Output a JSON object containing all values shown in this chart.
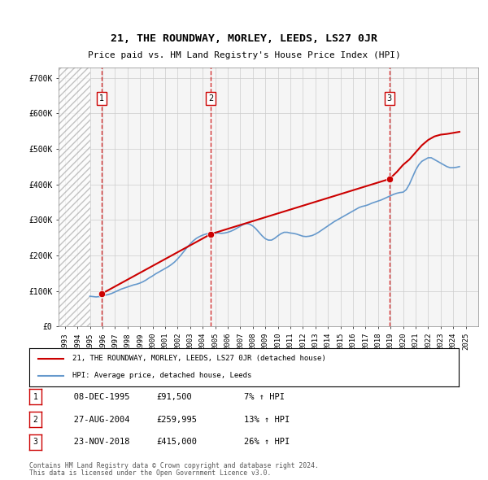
{
  "title": "21, THE ROUNDWAY, MORLEY, LEEDS, LS27 0JR",
  "subtitle": "Price paid vs. HM Land Registry's House Price Index (HPI)",
  "ylabel_ticks": [
    "£0",
    "£100K",
    "£200K",
    "£300K",
    "£400K",
    "£500K",
    "£600K",
    "£700K"
  ],
  "ytick_values": [
    0,
    100000,
    200000,
    300000,
    400000,
    500000,
    600000,
    700000
  ],
  "ylim": [
    0,
    730000
  ],
  "xlim_years": [
    1993,
    2026
  ],
  "xtick_years": [
    1993,
    1994,
    1995,
    1996,
    1997,
    1998,
    1999,
    2000,
    2001,
    2002,
    2003,
    2004,
    2005,
    2006,
    2007,
    2008,
    2009,
    2010,
    2011,
    2012,
    2013,
    2014,
    2015,
    2016,
    2017,
    2018,
    2019,
    2020,
    2021,
    2022,
    2023,
    2024,
    2025
  ],
  "hpi_line_color": "#6699cc",
  "price_line_color": "#cc0000",
  "marker_color": "#cc0000",
  "dashed_line_color": "#cc0000",
  "hatch_color": "#cccccc",
  "grid_color": "#cccccc",
  "background_color": "#ffffff",
  "plot_bg_color": "#f5f5f5",
  "transactions": [
    {
      "number": 1,
      "date": "08-DEC-1995",
      "price": 91500,
      "pct": "7%",
      "direction": "↑",
      "label": "HPI",
      "year": 1995.92
    },
    {
      "number": 2,
      "date": "27-AUG-2004",
      "price": 259995,
      "pct": "13%",
      "direction": "↑",
      "label": "HPI",
      "year": 2004.65
    },
    {
      "number": 3,
      "date": "23-NOV-2018",
      "price": 415000,
      "pct": "26%",
      "direction": "↑",
      "label": "HPI",
      "year": 2018.9
    }
  ],
  "legend_line1": "21, THE ROUNDWAY, MORLEY, LEEDS, LS27 0JR (detached house)",
  "legend_line2": "HPI: Average price, detached house, Leeds",
  "footer_line1": "Contains HM Land Registry data © Crown copyright and database right 2024.",
  "footer_line2": "This data is licensed under the Open Government Licence v3.0.",
  "hpi_data_x": [
    1995.0,
    1995.25,
    1995.5,
    1995.75,
    1996.0,
    1996.25,
    1996.5,
    1996.75,
    1997.0,
    1997.25,
    1997.5,
    1997.75,
    1998.0,
    1998.25,
    1998.5,
    1998.75,
    1999.0,
    1999.25,
    1999.5,
    1999.75,
    2000.0,
    2000.25,
    2000.5,
    2000.75,
    2001.0,
    2001.25,
    2001.5,
    2001.75,
    2002.0,
    2002.25,
    2002.5,
    2002.75,
    2003.0,
    2003.25,
    2003.5,
    2003.75,
    2004.0,
    2004.25,
    2004.5,
    2004.75,
    2005.0,
    2005.25,
    2005.5,
    2005.75,
    2006.0,
    2006.25,
    2006.5,
    2006.75,
    2007.0,
    2007.25,
    2007.5,
    2007.75,
    2008.0,
    2008.25,
    2008.5,
    2008.75,
    2009.0,
    2009.25,
    2009.5,
    2009.75,
    2010.0,
    2010.25,
    2010.5,
    2010.75,
    2011.0,
    2011.25,
    2011.5,
    2011.75,
    2012.0,
    2012.25,
    2012.5,
    2012.75,
    2013.0,
    2013.25,
    2013.5,
    2013.75,
    2014.0,
    2014.25,
    2014.5,
    2014.75,
    2015.0,
    2015.25,
    2015.5,
    2015.75,
    2016.0,
    2016.25,
    2016.5,
    2016.75,
    2017.0,
    2017.25,
    2017.5,
    2017.75,
    2018.0,
    2018.25,
    2018.5,
    2018.75,
    2019.0,
    2019.25,
    2019.5,
    2019.75,
    2020.0,
    2020.25,
    2020.5,
    2020.75,
    2021.0,
    2021.25,
    2021.5,
    2021.75,
    2022.0,
    2022.25,
    2022.5,
    2022.75,
    2023.0,
    2023.25,
    2023.5,
    2023.75,
    2024.0,
    2024.25,
    2024.5
  ],
  "hpi_data_y": [
    85000,
    84000,
    83000,
    84000,
    86000,
    88000,
    90000,
    93000,
    97000,
    101000,
    105000,
    108000,
    111000,
    114000,
    117000,
    119000,
    122000,
    126000,
    131000,
    137000,
    142000,
    148000,
    153000,
    158000,
    163000,
    168000,
    174000,
    181000,
    190000,
    200000,
    211000,
    222000,
    232000,
    241000,
    248000,
    253000,
    257000,
    260000,
    262000,
    263000,
    263000,
    263000,
    262000,
    263000,
    265000,
    268000,
    272000,
    277000,
    282000,
    287000,
    290000,
    288000,
    283000,
    275000,
    265000,
    255000,
    247000,
    243000,
    243000,
    248000,
    255000,
    261000,
    265000,
    265000,
    263000,
    262000,
    260000,
    257000,
    254000,
    253000,
    254000,
    256000,
    260000,
    265000,
    271000,
    277000,
    283000,
    289000,
    295000,
    300000,
    305000,
    310000,
    315000,
    320000,
    325000,
    330000,
    335000,
    338000,
    340000,
    343000,
    347000,
    350000,
    353000,
    356000,
    360000,
    364000,
    368000,
    372000,
    375000,
    377000,
    378000,
    385000,
    400000,
    420000,
    440000,
    455000,
    465000,
    470000,
    475000,
    475000,
    470000,
    465000,
    460000,
    455000,
    450000,
    447000,
    447000,
    448000,
    450000
  ],
  "price_data_x": [
    1995.92,
    1995.92,
    2004.65,
    2004.65,
    2018.9,
    2018.9,
    2019.0,
    2019.5,
    2020.0,
    2020.5,
    2021.0,
    2021.5,
    2022.0,
    2022.5,
    2023.0,
    2023.5,
    2024.0,
    2024.5
  ],
  "price_data_y": [
    91500,
    91500,
    259995,
    259995,
    415000,
    415000,
    418000,
    435000,
    455000,
    470000,
    490000,
    510000,
    525000,
    535000,
    540000,
    542000,
    545000,
    548000
  ]
}
